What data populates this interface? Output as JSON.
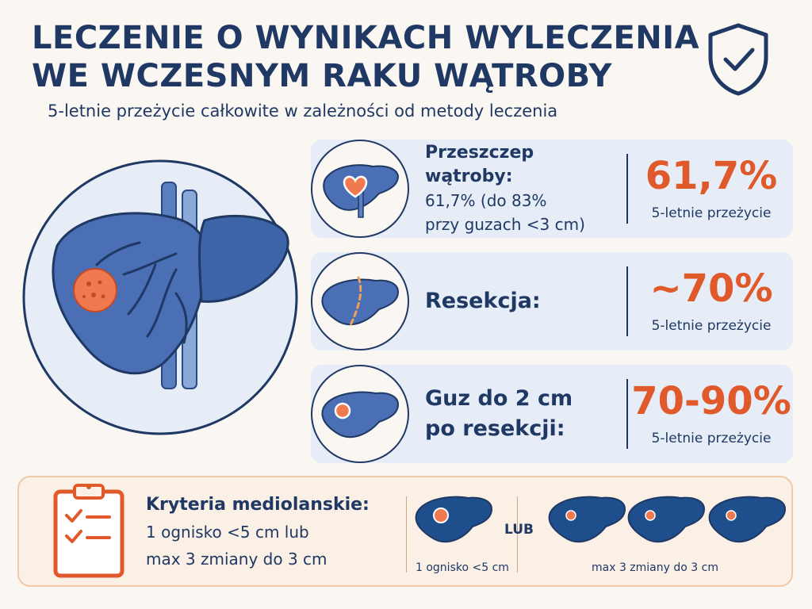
{
  "header": {
    "title_line1": "LECZENIE O WYNIKACH WYLECZENIA",
    "title_line2": "WE WCZESNYM RAKU WĄTROBY",
    "subtitle": "5-letnie przeżycie całkowite w zależności od metody leczenia",
    "icon": "shield-check-icon"
  },
  "hero": {
    "icon": "liver-tumor-illustration"
  },
  "cards": [
    {
      "icon": "liver-transplant-heart-icon",
      "label_line1": "Przeszczep wątroby:",
      "label_line2": "61,7% (do 83%",
      "label_line3": "przy guzach <3 cm)",
      "stat": "61,7%",
      "stat_caption": "5-letnie przeżycie"
    },
    {
      "icon": "liver-resection-icon",
      "label_line1": "Resekcja:",
      "stat": "~70%",
      "stat_caption": "5-letnie przeżycie"
    },
    {
      "icon": "liver-small-tumor-icon",
      "label_line1": "Guz do 2 cm",
      "label_line2": "po resekcji:",
      "stat": "70-90%",
      "stat_caption": "5-letnie przeżycie"
    }
  ],
  "criteria": {
    "icon": "clipboard-checklist-icon",
    "heading": "Kryteria mediolanskie:",
    "line1": "1 ognisko <5 cm lub",
    "line2": "max 3 zmiany do 3 cm",
    "or_label": "LUB",
    "caption_single": "1 ognisko <5 cm",
    "caption_multiple": "max 3 zmiany do 3 cm"
  },
  "colors": {
    "navy": "#1f3864",
    "liver_blue": "#3e64a8",
    "accent_orange": "#e0592a",
    "card_bg": "#e6edf6",
    "criteria_bg": "#fbf0e6",
    "page_bg": "#faf7f2"
  }
}
